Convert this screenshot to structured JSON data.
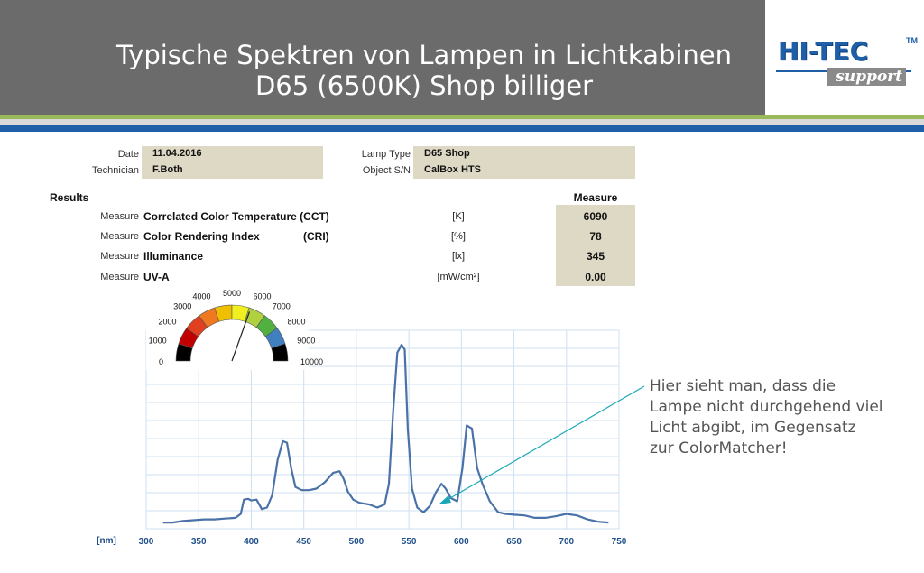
{
  "header": {
    "title_line1": "Typische Spektren von Lampen in Lichtkabinen",
    "title_line2": "D65 (6500K) Shop billiger",
    "logo_main": "HI-TEC",
    "logo_tm": "TM",
    "logo_sub": "support"
  },
  "info": {
    "date_label": "Date",
    "date_value": "11.04.2016",
    "technician_label": "Technician",
    "technician_value": "F.Both",
    "lamp_type_label": "Lamp Type",
    "lamp_type_value": "D65 Shop",
    "object_sn_label": "Object S/N",
    "object_sn_value": "CalBox HTS"
  },
  "results": {
    "heading": "Results",
    "measure_heading": "Measure",
    "rows": [
      {
        "prefix": "Measure",
        "name": "Correlated Color Temperature (CCT)",
        "abbr": "",
        "unit": "[K]",
        "value": "6090"
      },
      {
        "prefix": "Measure",
        "name": "Color Rendering Index",
        "abbr": "(CRI)",
        "unit": "[%]",
        "value": "78"
      },
      {
        "prefix": "Measure",
        "name": "Illuminance",
        "abbr": "",
        "unit": "[lx]",
        "value": "345"
      },
      {
        "prefix": "Measure",
        "name": "UV-A",
        "abbr": "",
        "unit": "[mW/cm²]",
        "value": "0.00"
      }
    ]
  },
  "gauge": {
    "labels": [
      "0",
      "1000",
      "2000",
      "3000",
      "4000",
      "5000",
      "6000",
      "7000",
      "8000",
      "9000",
      "10000"
    ],
    "segment_colors": [
      "#000000",
      "#c00000",
      "#e04020",
      "#f07820",
      "#f0c000",
      "#f0f020",
      "#b0d040",
      "#50b040",
      "#4080c0",
      "#000000"
    ],
    "needle_value": 6090,
    "min": 0,
    "max": 10000
  },
  "chart_data": {
    "type": "line",
    "x_unit_label": "[nm]",
    "xlim": [
      300,
      750
    ],
    "x_ticks": [
      300,
      350,
      400,
      450,
      500,
      550,
      600,
      650,
      700,
      750
    ],
    "line_color": "#4a72a8",
    "grid": true,
    "series": [
      {
        "x": [
          316,
          325,
          335,
          345,
          355,
          365,
          375,
          385,
          390,
          393,
          397,
          400,
          405,
          410,
          415,
          420,
          425,
          430,
          434,
          438,
          442,
          448,
          455,
          462,
          470,
          478,
          484,
          488,
          492,
          497,
          503,
          512,
          520,
          527,
          531,
          535,
          539,
          543,
          546,
          549,
          553,
          558,
          564,
          570,
          576,
          581,
          585,
          590,
          596,
          601,
          605,
          610,
          615,
          620,
          627,
          635,
          642,
          650,
          660,
          670,
          680,
          690,
          700,
          710,
          720,
          730,
          740
        ],
        "y": [
          0.5,
          0.5,
          1.5,
          2.0,
          2.5,
          2.5,
          3.0,
          3.5,
          6.0,
          15.0,
          15.5,
          14.5,
          15.0,
          9.0,
          10.0,
          18.0,
          40.0,
          52.0,
          51.0,
          35.0,
          23.0,
          21.0,
          21.0,
          22.0,
          26.0,
          32.0,
          33.0,
          28.0,
          20.0,
          15.0,
          13.0,
          12.0,
          10.0,
          12.0,
          25.0,
          70.0,
          108.0,
          113.0,
          110.0,
          60.0,
          22.0,
          10.0,
          7.0,
          11.0,
          20.0,
          25.0,
          22.0,
          16.0,
          14.0,
          35.0,
          62.0,
          60.0,
          35.0,
          25.0,
          14.0,
          7.0,
          6.0,
          5.5,
          5.0,
          3.5,
          3.5,
          4.5,
          6.0,
          5.0,
          2.5,
          1.0,
          0.5
        ]
      }
    ]
  },
  "annotation": {
    "text": "Hier sieht man, dass die Lampe nicht durchgehend viel Licht abgibt, im Gegensatz zur ColorMatcher!"
  }
}
